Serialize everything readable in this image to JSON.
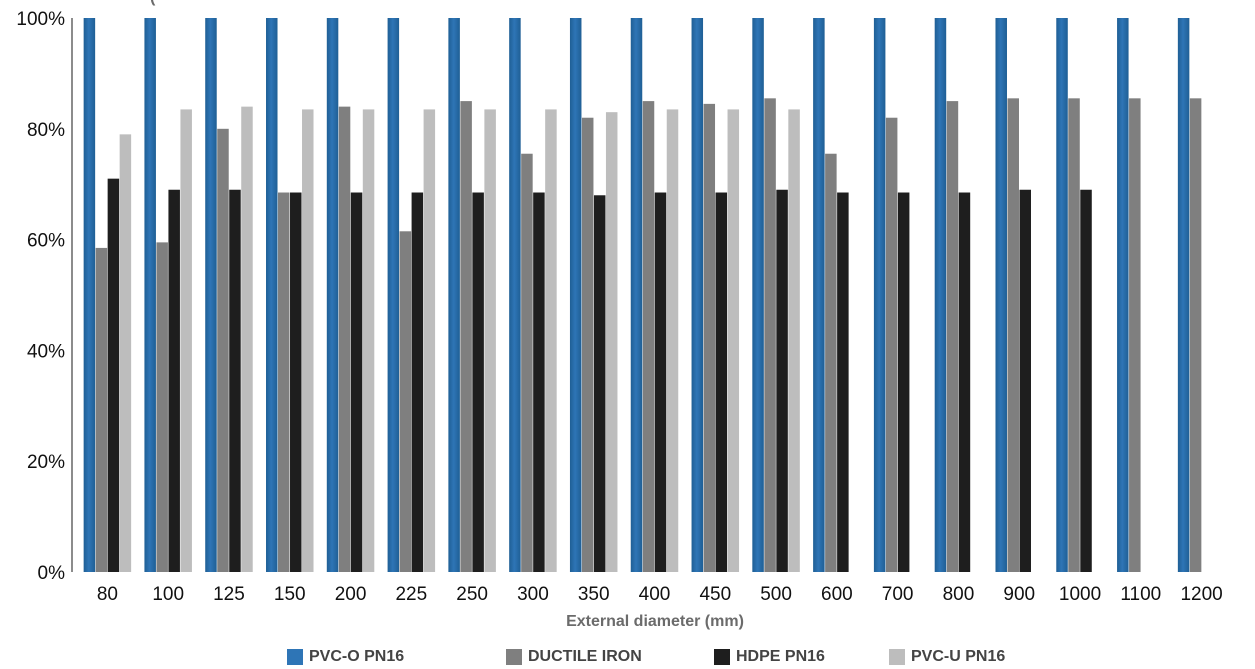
{
  "chart_data": {
    "type": "bar",
    "title": "",
    "title_partial": "(",
    "xlabel": "External diameter (mm)",
    "ylabel": "",
    "ylim": [
      0,
      100
    ],
    "yticks": [
      "0%",
      "20%",
      "40%",
      "60%",
      "80%",
      "100%"
    ],
    "categories": [
      "80",
      "100",
      "125",
      "150",
      "200",
      "225",
      "250",
      "300",
      "350",
      "400",
      "450",
      "500",
      "600",
      "700",
      "800",
      "900",
      "1000",
      "1100",
      "1200"
    ],
    "series": [
      {
        "name": "PVC-O PN16",
        "color": "#2e75b6",
        "values": [
          100,
          100,
          100,
          100,
          100,
          100,
          100,
          100,
          100,
          100,
          100,
          100,
          100,
          100,
          100,
          100,
          100,
          100,
          100
        ]
      },
      {
        "name": "DUCTILE IRON",
        "color": "#7f7f7f",
        "values": [
          58.5,
          59.5,
          80,
          68.5,
          84,
          61.5,
          85,
          75.5,
          82,
          85,
          84.5,
          85.5,
          75.5,
          82,
          85,
          85.5,
          85.5,
          85.5,
          85.5
        ]
      },
      {
        "name": "HDPE PN16",
        "color": "#1e1e1e",
        "values": [
          71,
          69,
          69,
          68.5,
          68.5,
          68.5,
          68.5,
          68.5,
          68,
          68.5,
          68.5,
          69,
          68.5,
          68.5,
          68.5,
          69,
          69,
          null,
          null
        ]
      },
      {
        "name": "PVC-U PN16",
        "color": "#bdbdbd",
        "values": [
          79,
          83.5,
          84,
          83.5,
          83.5,
          83.5,
          83.5,
          83.5,
          83,
          83.5,
          83.5,
          83.5,
          null,
          null,
          null,
          null,
          null,
          null,
          null
        ]
      }
    ],
    "legend_position": "bottom",
    "grid": false
  }
}
